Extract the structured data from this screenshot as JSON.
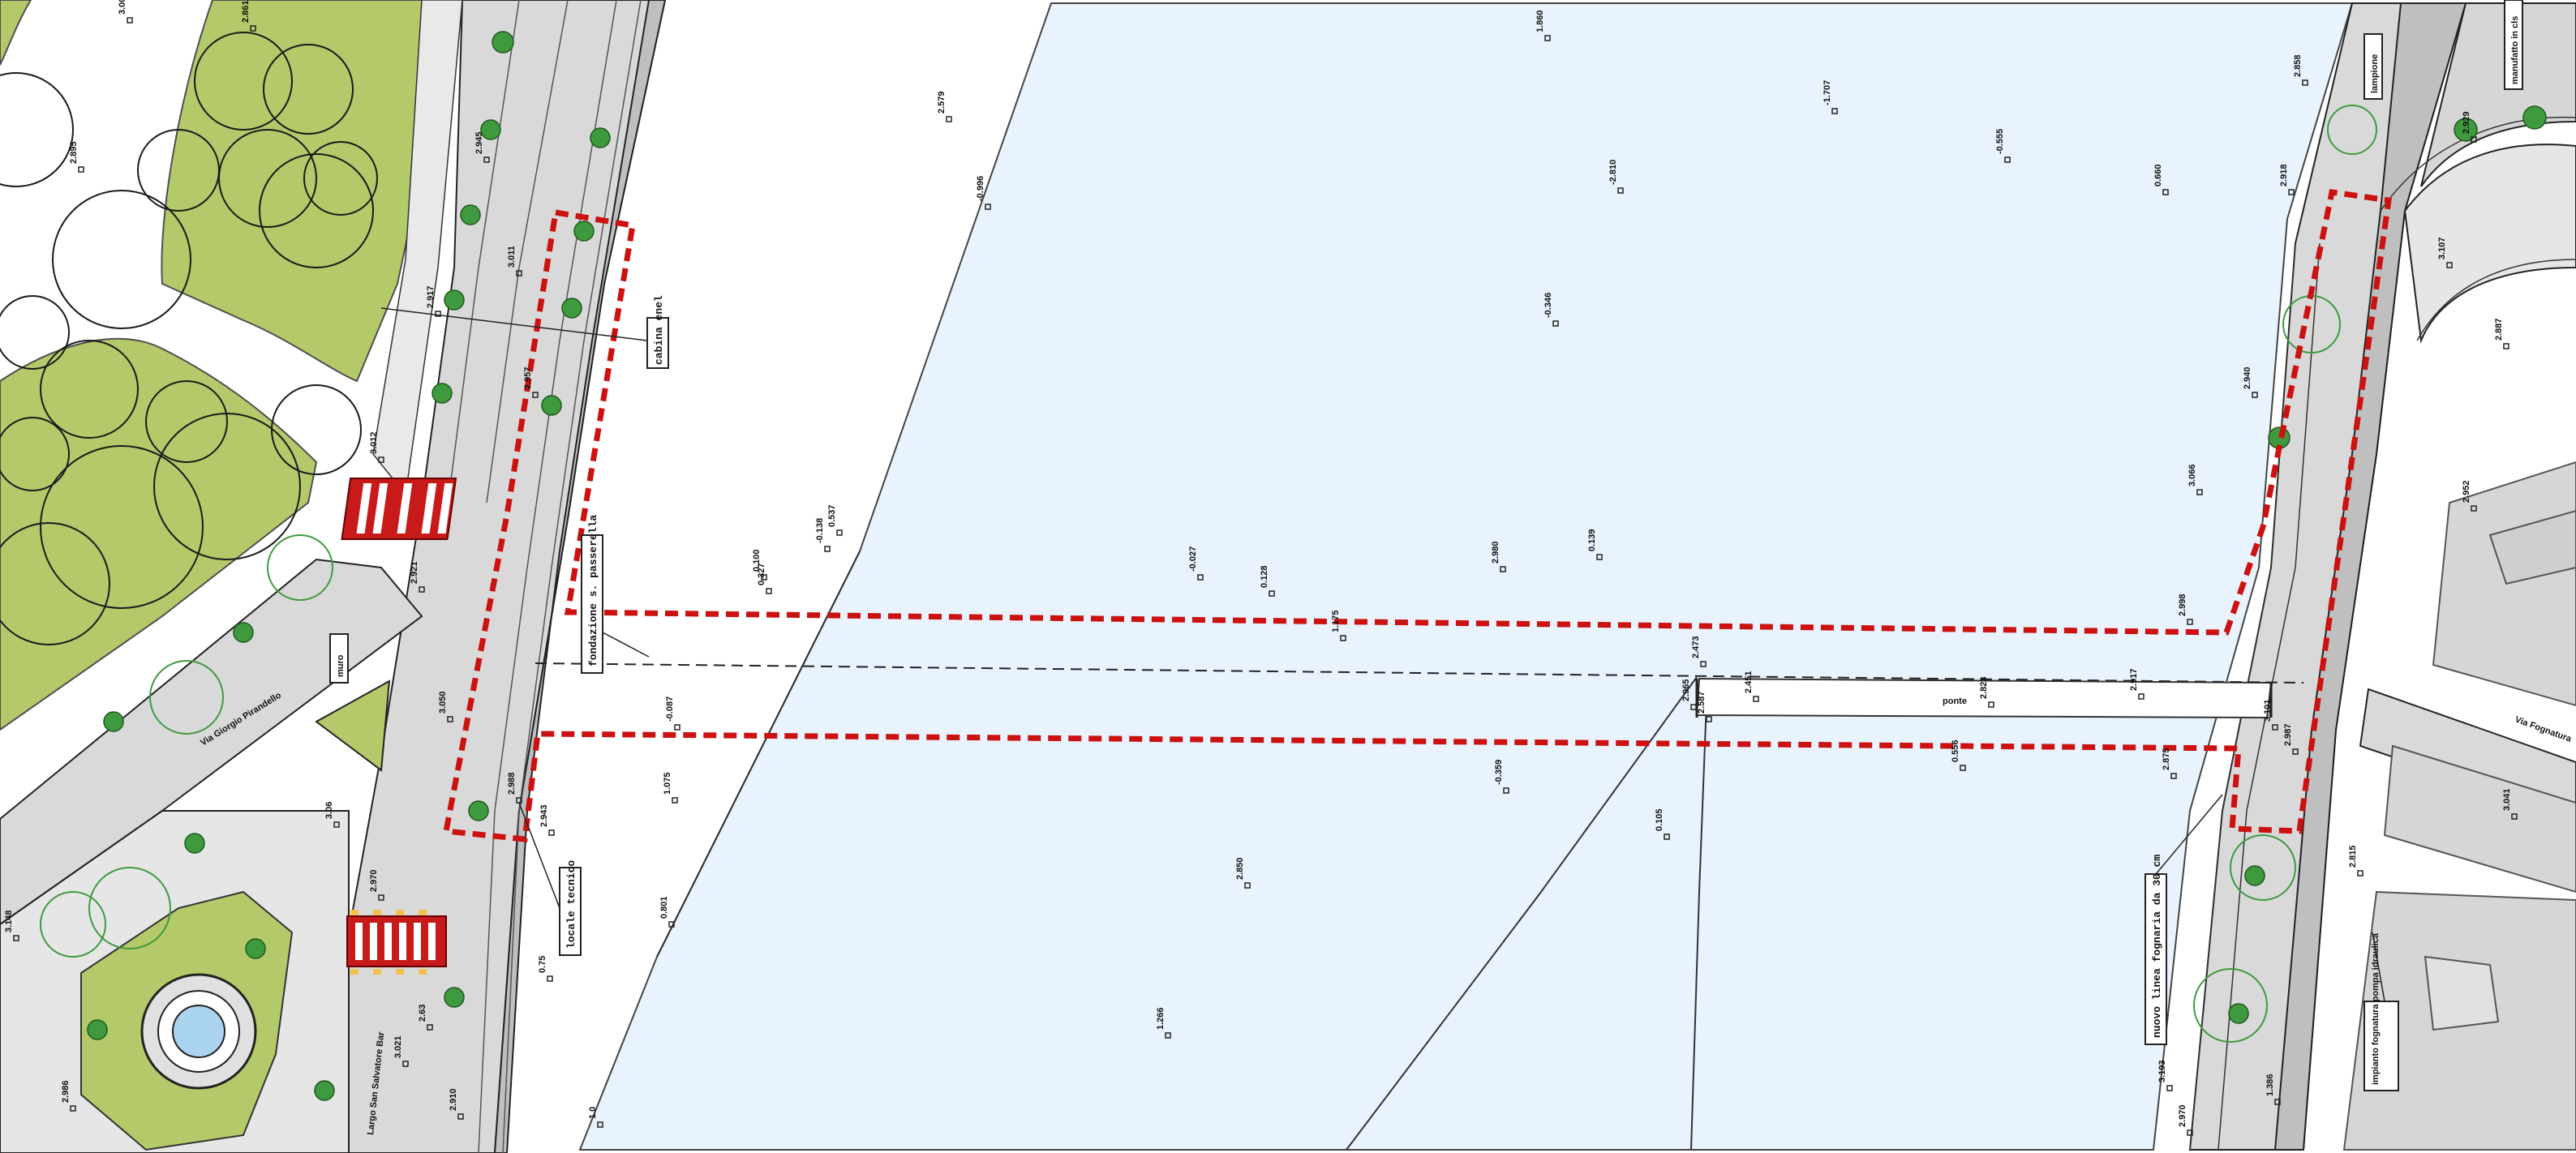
{
  "colors": {
    "water": "#e8f3fd",
    "park": "#b3c96a",
    "road": "#d9d9d9",
    "pavement": "#bfbfbf",
    "building": "#d6d6d6",
    "crossing": "#c91a1a",
    "boundary": "#cc1111",
    "tree": "#3f9a3f"
  },
  "icons": [
    "tree-icon",
    "survey-point-icon",
    "fountain-icon",
    "crosswalk-icon"
  ],
  "callouts": {
    "cable_box": "cabina enel",
    "footbridge_foundation": "fondazione s. passerella",
    "technical_room": "locale tecnico",
    "sewer_line": "nuovo linea fognaria da 30 cm",
    "pump_station": "impianto fognatura pompa idraulica",
    "wall_label": "muro",
    "lamp_post": "lampione",
    "structure_label": "manufatto in cls",
    "bridge_label": "ponte"
  },
  "streets": {
    "left_1": "Via Giorgio Pirandello",
    "left_2": "Largo San Salvatore Bar",
    "right_1": "Via Fognatura"
  },
  "elevations": {
    "water": [
      "1.860",
      "2.579",
      "-0.996",
      "-2.810",
      "-1.707",
      "-0.555",
      "0.660",
      "-0.346",
      "0.139",
      "-0.027",
      "0.128",
      "1.175",
      "0.537",
      "0.100",
      "-0.087",
      "-0.359",
      "2.850",
      "1.266",
      "1.075",
      "0.801",
      "-0.138",
      "0.327",
      "0.556"
    ],
    "left_bank": [
      "3.007",
      "2.861",
      "2.895",
      "2.917",
      "2.945",
      "3.011",
      "2.957",
      "3.012",
      "2.921",
      "3.050",
      "2.988",
      "2.943",
      "3.021",
      "2.910",
      "3.148",
      "2.986"
    ],
    "right_bank": [
      "2.858",
      "2.918",
      "2.940",
      "3.066",
      "2.998",
      "2.987",
      "2.815",
      "2.929",
      "3.107",
      "2.887",
      "2.952",
      "3.041",
      "2.875",
      "3.193",
      "2.970"
    ],
    "bridge": [
      "2.473",
      "2.965",
      "2.587",
      "2.451",
      "2.823",
      "2.917",
      "3.101"
    ],
    "misc": [
      "0.75",
      "2.63",
      "1.0",
      "3.06",
      "2.970",
      "2.980",
      "0.105",
      "1.386"
    ]
  }
}
